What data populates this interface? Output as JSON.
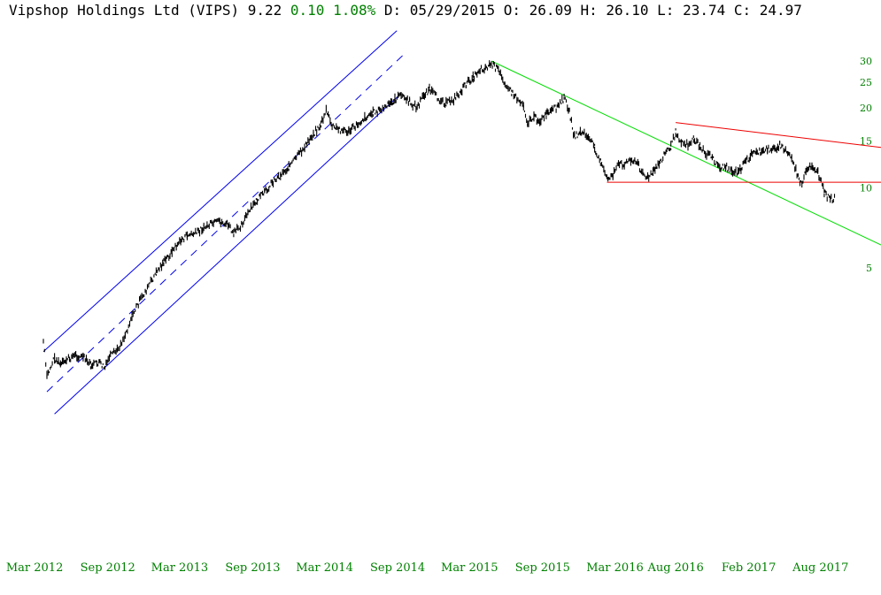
{
  "header": {
    "name": "Vipshop Holdings Ltd (VIPS)",
    "price": "9.22",
    "change": "0.10",
    "change_pct": "1.08%",
    "date": "D: 05/29/2015",
    "open": "O: 26.09",
    "high": "H: 26.10",
    "low": "L: 23.74",
    "close": "C: 24.97"
  },
  "chart_data": {
    "type": "line",
    "title": "Vipshop Holdings Ltd (VIPS)",
    "xlabel": "",
    "ylabel": "",
    "y_scale": "log",
    "ylim": [
      1.6,
      34
    ],
    "x_tick_labels": [
      "Mar 2012",
      "Sep 2012",
      "Mar 2013",
      "Sep 2013",
      "Mar 2014",
      "Sep 2014",
      "Mar 2015",
      "Sep 2015",
      "Mar 2016",
      "Aug 2016",
      "Feb 2017",
      "Aug 2017"
    ],
    "x_ticks": [
      "2012-03-01",
      "2012-09-01",
      "2013-03-01",
      "2013-09-01",
      "2014-03-01",
      "2014-09-01",
      "2015-03-01",
      "2015-09-01",
      "2016-03-01",
      "2016-08-01",
      "2017-02-01",
      "2017-08-01"
    ],
    "y_ticks": [
      5,
      10,
      15,
      20,
      25,
      30
    ],
    "grid": false,
    "series": [
      {
        "color": "#000000",
        "points": [
          [
            "2012-03-23",
            2.65
          ],
          [
            "2012-04-01",
            1.95
          ],
          [
            "2012-04-20",
            2.3
          ],
          [
            "2012-05-05",
            2.15
          ],
          [
            "2012-05-20",
            2.25
          ],
          [
            "2012-06-10",
            2.35
          ],
          [
            "2012-07-01",
            2.3
          ],
          [
            "2012-07-20",
            2.15
          ],
          [
            "2012-08-10",
            2.2
          ],
          [
            "2012-08-25",
            2.1
          ],
          [
            "2012-09-05",
            2.3
          ],
          [
            "2012-09-25",
            2.45
          ],
          [
            "2012-10-15",
            2.8
          ],
          [
            "2012-11-01",
            3.3
          ],
          [
            "2012-11-20",
            3.75
          ],
          [
            "2012-12-10",
            4.2
          ],
          [
            "2013-01-01",
            4.8
          ],
          [
            "2013-01-20",
            5.25
          ],
          [
            "2013-02-10",
            5.75
          ],
          [
            "2013-03-01",
            6.3
          ],
          [
            "2013-03-20",
            6.6
          ],
          [
            "2013-04-10",
            6.75
          ],
          [
            "2013-05-01",
            7.1
          ],
          [
            "2013-05-20",
            7.3
          ],
          [
            "2013-06-10",
            7.45
          ],
          [
            "2013-07-01",
            7.25
          ],
          [
            "2013-07-15",
            6.7
          ],
          [
            "2013-08-01",
            7.2
          ],
          [
            "2013-08-20",
            8.0
          ],
          [
            "2013-09-10",
            8.9
          ],
          [
            "2013-10-01",
            9.6
          ],
          [
            "2013-10-20",
            10.5
          ],
          [
            "2013-11-10",
            11.2
          ],
          [
            "2013-12-01",
            12.0
          ],
          [
            "2013-12-20",
            13.0
          ],
          [
            "2014-01-10",
            14.2
          ],
          [
            "2014-02-01",
            16.0
          ],
          [
            "2014-02-20",
            17.3
          ],
          [
            "2014-03-05",
            19.6
          ],
          [
            "2014-03-20",
            17.0
          ],
          [
            "2014-04-10",
            16.5
          ],
          [
            "2014-05-01",
            16.3
          ],
          [
            "2014-05-20",
            17.2
          ],
          [
            "2014-06-10",
            18.4
          ],
          [
            "2014-07-01",
            19.2
          ],
          [
            "2014-07-20",
            19.6
          ],
          [
            "2014-08-10",
            20.5
          ],
          [
            "2014-08-25",
            21.5
          ],
          [
            "2014-09-10",
            22.3
          ],
          [
            "2014-10-01",
            21.0
          ],
          [
            "2014-10-20",
            20.0
          ],
          [
            "2014-11-05",
            22.3
          ],
          [
            "2014-11-20",
            23.5
          ],
          [
            "2014-12-10",
            21.8
          ],
          [
            "2015-01-01",
            20.8
          ],
          [
            "2015-01-20",
            21.5
          ],
          [
            "2015-02-05",
            22.8
          ],
          [
            "2015-02-20",
            24.5
          ],
          [
            "2015-03-10",
            26.0
          ],
          [
            "2015-03-25",
            27.8
          ],
          [
            "2015-04-10",
            28.3
          ],
          [
            "2015-04-25",
            29.2
          ],
          [
            "2015-05-10",
            28.0
          ],
          [
            "2015-05-29",
            24.97
          ],
          [
            "2015-06-15",
            22.8
          ],
          [
            "2015-07-01",
            21.5
          ],
          [
            "2015-07-15",
            20.5
          ],
          [
            "2015-07-25",
            17.5
          ],
          [
            "2015-08-10",
            18.5
          ],
          [
            "2015-08-25",
            17.8
          ],
          [
            "2015-09-10",
            18.8
          ],
          [
            "2015-09-25",
            19.5
          ],
          [
            "2015-10-10",
            20.3
          ],
          [
            "2015-10-25",
            21.8
          ],
          [
            "2015-11-05",
            20.0
          ],
          [
            "2015-11-20",
            15.5
          ],
          [
            "2015-12-05",
            16.2
          ],
          [
            "2015-12-20",
            15.8
          ],
          [
            "2016-01-10",
            14.2
          ],
          [
            "2016-01-25",
            12.5
          ],
          [
            "2016-02-10",
            10.8
          ],
          [
            "2016-02-25",
            11.2
          ],
          [
            "2016-03-10",
            12.2
          ],
          [
            "2016-03-25",
            12.3
          ],
          [
            "2016-04-10",
            12.8
          ],
          [
            "2016-04-25",
            12.4
          ],
          [
            "2016-05-10",
            11.5
          ],
          [
            "2016-05-20",
            10.8
          ],
          [
            "2016-06-05",
            11.4
          ],
          [
            "2016-06-20",
            12.3
          ],
          [
            "2016-07-05",
            13.5
          ],
          [
            "2016-07-20",
            14.3
          ],
          [
            "2016-08-01",
            16.2
          ],
          [
            "2016-08-15",
            15.0
          ],
          [
            "2016-09-01",
            14.5
          ],
          [
            "2016-09-15",
            15.3
          ],
          [
            "2016-10-01",
            14.3
          ],
          [
            "2016-10-15",
            13.5
          ],
          [
            "2016-11-01",
            13.0
          ],
          [
            "2016-11-20",
            11.9
          ],
          [
            "2016-12-05",
            12.0
          ],
          [
            "2016-12-20",
            11.6
          ],
          [
            "2017-01-05",
            11.4
          ],
          [
            "2017-01-20",
            12.3
          ],
          [
            "2017-02-05",
            13.2
          ],
          [
            "2017-02-20",
            13.8
          ],
          [
            "2017-03-05",
            13.5
          ],
          [
            "2017-03-20",
            14.0
          ],
          [
            "2017-04-05",
            14.0
          ],
          [
            "2017-04-20",
            14.5
          ],
          [
            "2017-05-05",
            13.8
          ],
          [
            "2017-05-20",
            13.0
          ],
          [
            "2017-06-05",
            11.0
          ],
          [
            "2017-06-15",
            10.2
          ],
          [
            "2017-06-25",
            11.5
          ],
          [
            "2017-07-10",
            12.2
          ],
          [
            "2017-07-25",
            11.4
          ],
          [
            "2017-08-10",
            9.6
          ],
          [
            "2017-08-25",
            9.0
          ],
          [
            "2017-09-05",
            9.22
          ]
        ]
      }
    ],
    "trendlines": [
      {
        "style": "solid",
        "color": "#0000ee",
        "from": [
          "2012-03-23",
          2.42
        ],
        "to": [
          "2014-08-30",
          39.0
        ]
      },
      {
        "style": "dashed",
        "color": "#0000ee",
        "from": [
          "2012-04-01",
          1.71
        ],
        "to": [
          "2014-09-15",
          31.6
        ]
      },
      {
        "style": "solid",
        "color": "#0000ee",
        "from": [
          "2012-04-20",
          1.41
        ],
        "to": [
          "2014-09-05",
          22.3
        ]
      },
      {
        "style": "solid",
        "color": "#00dd00",
        "from": [
          "2015-04-25",
          30.0
        ],
        "to": [
          "2017-12-31",
          6.1
        ]
      },
      {
        "style": "solid",
        "color": "#ee0000",
        "from": [
          "2016-08-01",
          17.6
        ],
        "to": [
          "2017-12-31",
          14.2
        ]
      },
      {
        "style": "solid",
        "color": "#ee0000",
        "from": [
          "2016-02-10",
          10.5
        ],
        "to": [
          "2017-12-31",
          10.5
        ]
      }
    ]
  }
}
